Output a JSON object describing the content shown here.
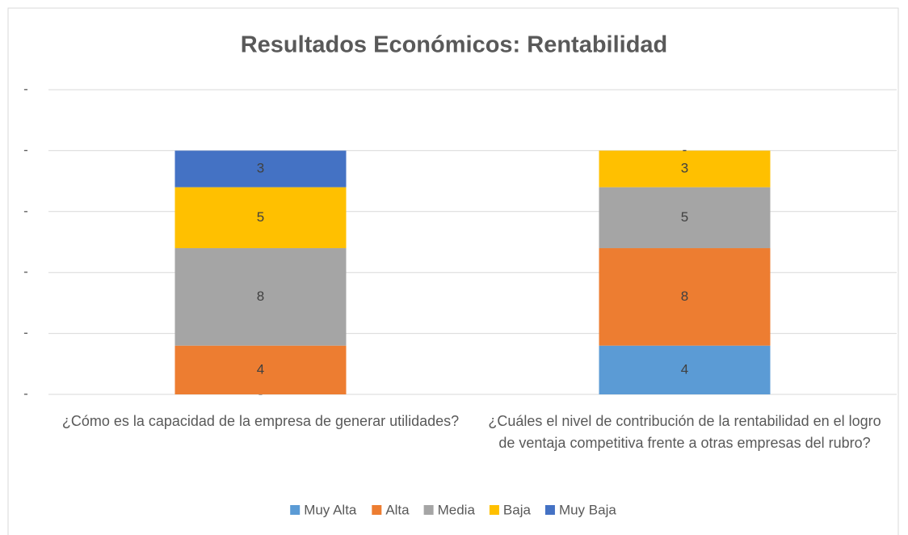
{
  "chart_data": {
    "type": "stacked_bar",
    "title": "Resultados Económicos: Rentabilidad",
    "categories": [
      "¿Cómo es la capacidad de la empresa de generar utilidades?",
      "¿Cuáles el nivel de contribución de la rentabilidad en el logro de ventaja competitiva frente a otras empresas del rubro?"
    ],
    "series": [
      {
        "name": "Muy Alta",
        "color": "#5b9bd5",
        "values": [
          0,
          4
        ],
        "value_labels": [
          "-",
          "4"
        ]
      },
      {
        "name": "Alta",
        "color": "#ed7d31",
        "values": [
          4,
          8
        ],
        "value_labels": [
          "4",
          "8"
        ]
      },
      {
        "name": "Media",
        "color": "#a5a5a5",
        "values": [
          8,
          5
        ],
        "value_labels": [
          "8",
          "5"
        ]
      },
      {
        "name": "Baja",
        "color": "#ffc000",
        "values": [
          5,
          3
        ],
        "value_labels": [
          "5",
          "3"
        ]
      },
      {
        "name": "Muy Baja",
        "color": "#4472c4",
        "values": [
          3,
          0
        ],
        "value_labels": [
          "3",
          "-"
        ]
      }
    ],
    "ylim": [
      0,
      25
    ],
    "yticks": [
      {
        "value": 0,
        "label": "-"
      },
      {
        "value": 5,
        "label": "-"
      },
      {
        "value": 10,
        "label": "-"
      },
      {
        "value": 15,
        "label": "-"
      },
      {
        "value": 20,
        "label": "-"
      },
      {
        "value": 25,
        "label": "-"
      }
    ],
    "grid": true,
    "legend": "bottom"
  }
}
